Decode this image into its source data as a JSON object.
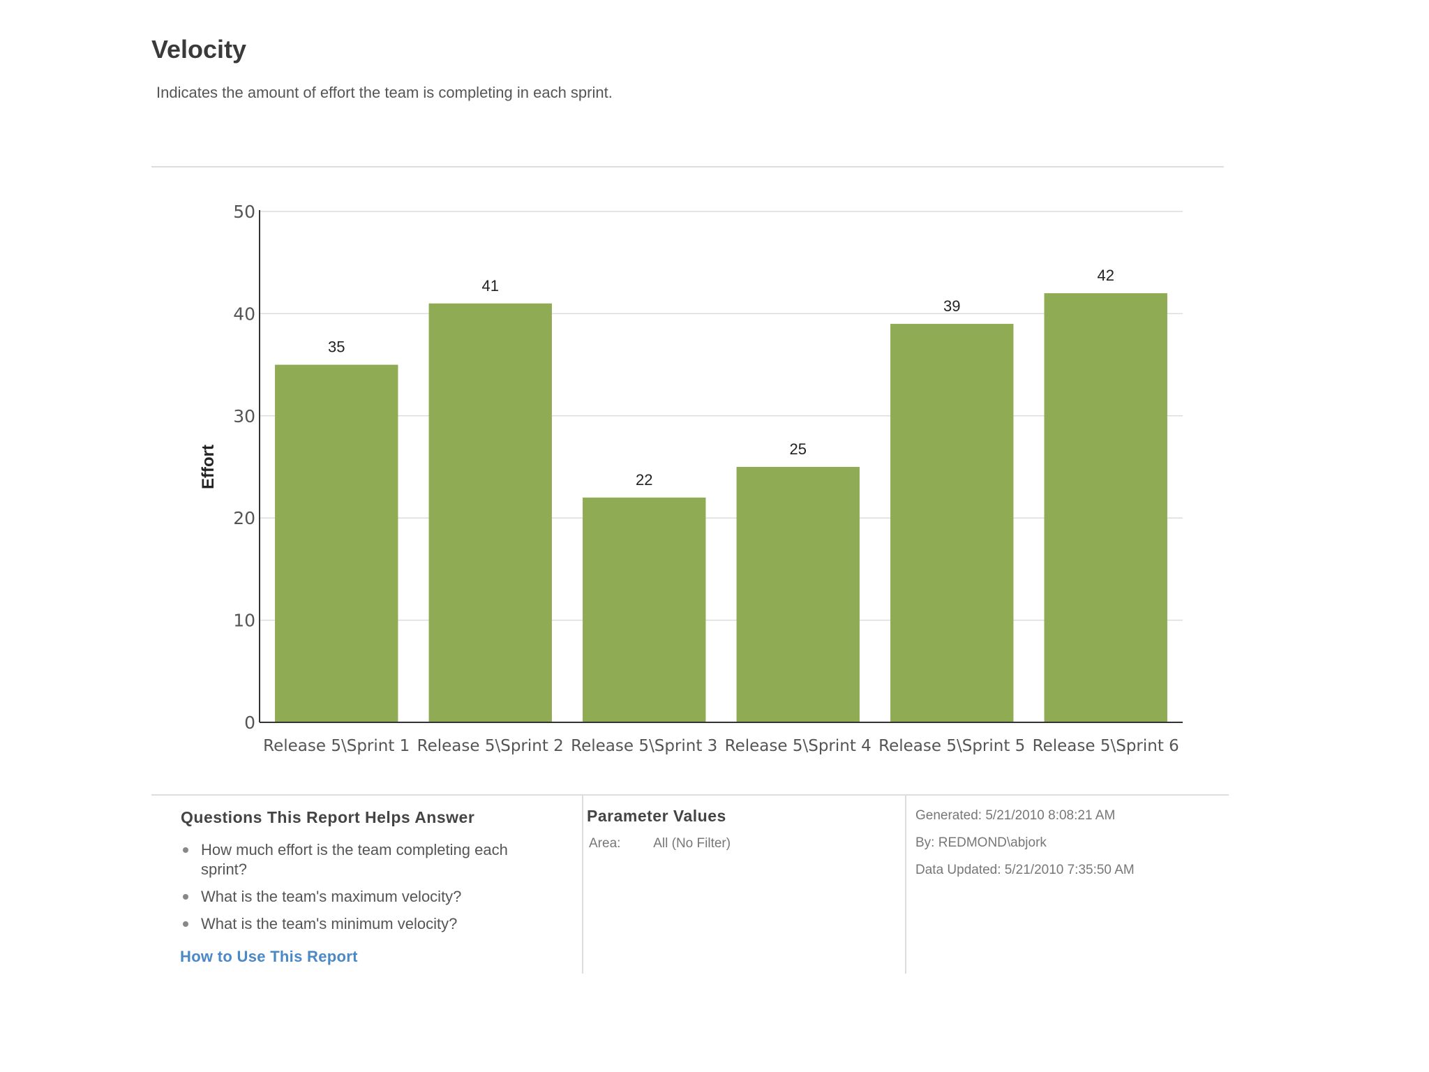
{
  "report": {
    "title": "Velocity",
    "subtitle": "Indicates the amount of effort the team is completing in each sprint."
  },
  "chart_data": {
    "type": "bar",
    "title": "",
    "xlabel": "",
    "ylabel": "Effort",
    "ylim": [
      0,
      50
    ],
    "yticks": [
      0,
      10,
      20,
      30,
      40,
      50
    ],
    "grid": true,
    "bar_color": "#8fac55",
    "categories": [
      "Release 5\\Sprint 1",
      "Release 5\\Sprint 2",
      "Release 5\\Sprint 3",
      "Release 5\\Sprint 4",
      "Release 5\\Sprint 5",
      "Release 5\\Sprint 6"
    ],
    "values": [
      35,
      41,
      22,
      25,
      39,
      42
    ],
    "data_labels": true
  },
  "questions": {
    "heading": "Questions This Report Helps Answer",
    "items": [
      "How much effort is the team completing each sprint?",
      "What is the team's maximum velocity?",
      "What is the team's minimum velocity?"
    ],
    "link_label": "How to Use This Report"
  },
  "parameters": {
    "heading": "Parameter Values",
    "area_label": "Area:",
    "area_value": "All (No Filter)"
  },
  "meta": {
    "generated": "Generated: 5/21/2010 8:08:21 AM",
    "by": "By: REDMOND\\abjork",
    "data_updated": "Data Updated: 5/21/2010 7:35:50 AM"
  },
  "colors": {
    "bar": "#8fac55",
    "link": "#4a88c6"
  }
}
